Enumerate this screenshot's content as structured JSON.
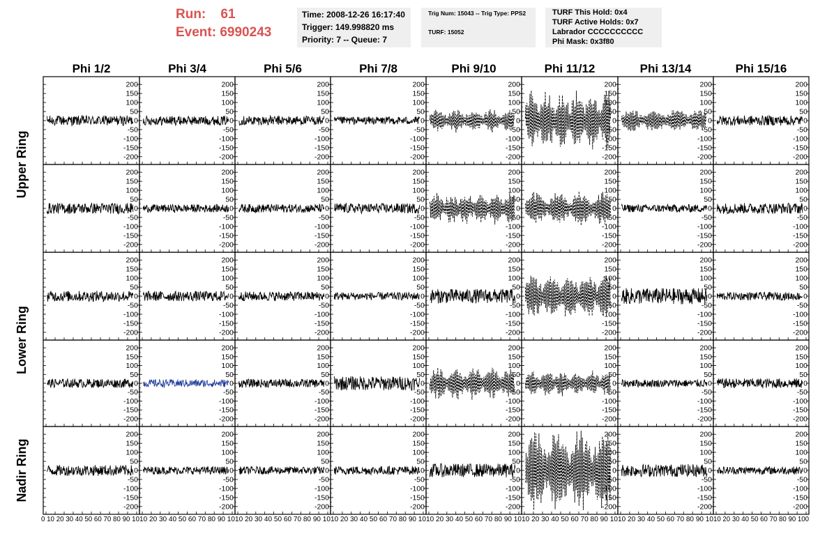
{
  "header": {
    "run_label": "Run:",
    "run_value": "61",
    "event_label": "Event:",
    "event_value": "6990243",
    "time": "Time: 2008-12-26 16:17:40",
    "trigger": "Trigger: 149.998820 ms",
    "priority": "Priority: 7 -- Queue: 7",
    "trig_num": "Trig Num: 15043 -- Trig Type: PPS2",
    "turf": "TURF: 15052",
    "turf_hold": "TURF This Hold: 0x4",
    "turf_active": "TURF Active Holds: 0x7",
    "labrador": "Labrador CCCCCCCCCC",
    "phi_mask": "Phi Mask: 0x3f80"
  },
  "chart_data": {
    "type": "line",
    "columns": [
      "Phi 1/2",
      "Phi 3/4",
      "Phi 5/6",
      "Phi 7/8",
      "Phi 9/10",
      "Phi 11/12",
      "Phi 13/14",
      "Phi 15/16"
    ],
    "ring_labels": [
      {
        "label": "Upper Ring"
      },
      {
        "label": "Lower Ring"
      },
      {
        "label": "Nadir Ring"
      }
    ],
    "rows": 5,
    "ylim": [
      -220,
      220
    ],
    "xlim": [
      0,
      100
    ],
    "y_ticks": [
      "200",
      "150",
      "100",
      "50",
      "0",
      "-50",
      "-100",
      "-150",
      "-200"
    ],
    "y_tick_values": [
      200,
      150,
      100,
      50,
      0,
      -50,
      -100,
      -150,
      -200
    ],
    "x_ticks": [
      "0",
      "10",
      "20",
      "30",
      "40",
      "50",
      "60",
      "70",
      "80",
      "90",
      "100"
    ],
    "x_tick_values": [
      0,
      10,
      20,
      30,
      40,
      50,
      60,
      70,
      80,
      90,
      100
    ],
    "x_tick_texts": [
      "0 10 20 30 40 50 60 70 80 90 10",
      "10 20 30 40 50 60 70 80 90 10",
      "10 20 30 40 50 60 70 80 90 10",
      "10 20 30 40 50 60 70 80 90 10",
      "10 20 30 40 50 60 70 80 90 10",
      "10 20 30 40 50 60 70 80 90 10",
      "10 20 30 40 50 60 70 80 90 10",
      "10 20 30 40 50 60 70 80 90 100"
    ],
    "series_color_default": "#000000",
    "series_color_highlight": "#1f3b99",
    "highlight_cell": {
      "row": 3,
      "col": 1
    },
    "amplitudes": [
      [
        28,
        26,
        26,
        22,
        55,
        140,
        55,
        28
      ],
      [
        30,
        22,
        24,
        28,
        75,
        80,
        22,
        30
      ],
      [
        30,
        28,
        26,
        22,
        40,
        110,
        45,
        22
      ],
      [
        25,
        22,
        24,
        40,
        80,
        60,
        22,
        28
      ],
      [
        30,
        22,
        22,
        24,
        38,
        200,
        35,
        22
      ]
    ]
  }
}
